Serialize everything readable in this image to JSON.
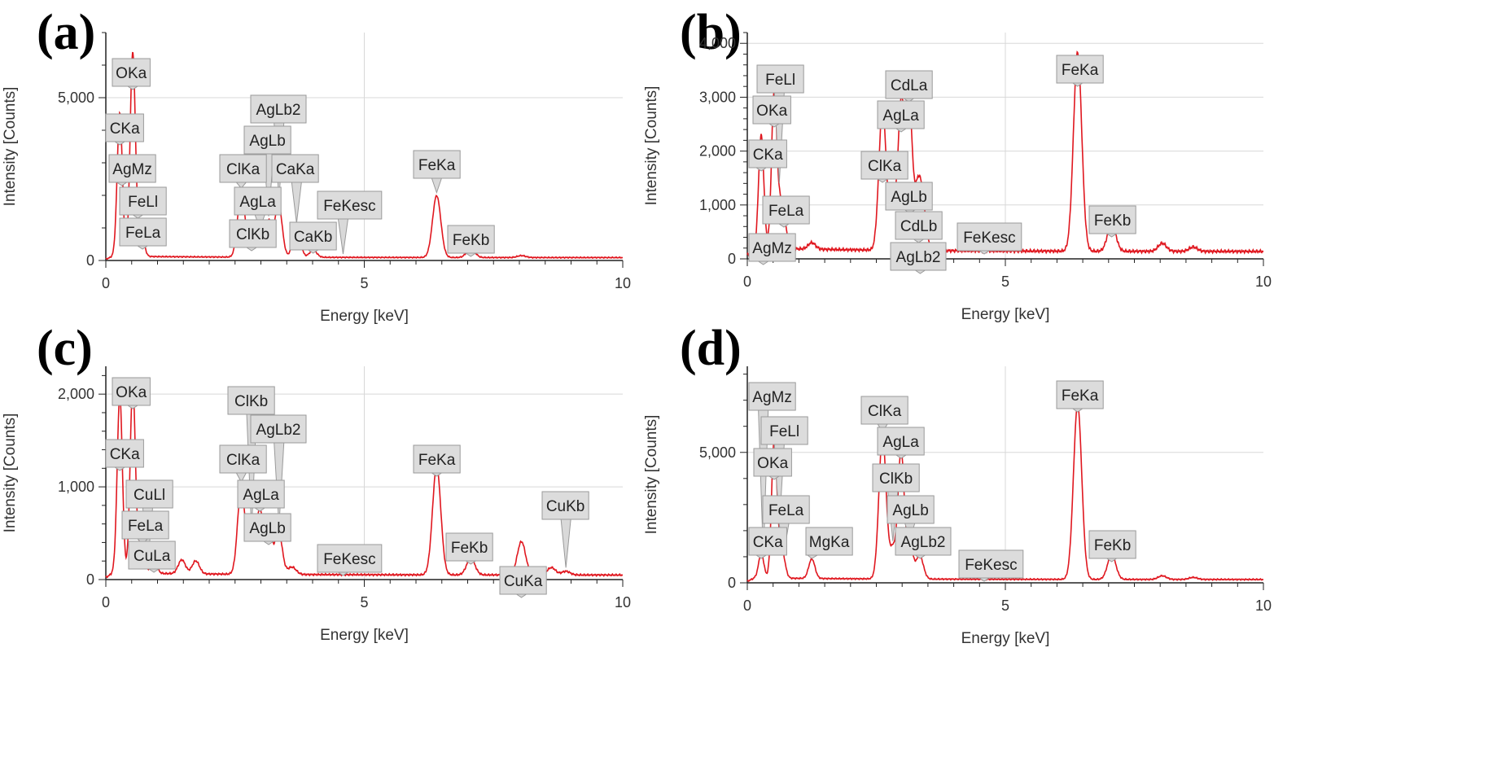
{
  "chart_data": [
    {
      "panel": "(a)",
      "type": "line",
      "xlabel": "Energy [keV]",
      "ylabel": "Intensity [Counts]",
      "xlim": [
        0,
        10
      ],
      "ylim": [
        0,
        7000
      ],
      "xticks": [
        "0",
        "5",
        "10"
      ],
      "yticks": [
        {
          "v": 0,
          "label": "0"
        },
        {
          "v": 5000,
          "label": "5,000"
        }
      ],
      "grid": true,
      "series_color": "#e0171f",
      "baseline": 90,
      "peaks": [
        [
          0.27,
          4400,
          0.05
        ],
        [
          0.52,
          6200,
          0.05
        ],
        [
          0.64,
          550,
          0.06
        ],
        [
          0.71,
          350,
          0.05
        ],
        [
          2.62,
          2000,
          0.07
        ],
        [
          2.82,
          700,
          0.06
        ],
        [
          2.98,
          750,
          0.06
        ],
        [
          3.15,
          1100,
          0.06
        ],
        [
          3.34,
          1650,
          0.07
        ],
        [
          3.69,
          950,
          0.07
        ],
        [
          4.01,
          220,
          0.07
        ],
        [
          6.4,
          1900,
          0.08
        ],
        [
          7.06,
          280,
          0.08
        ],
        [
          8.04,
          60,
          0.08
        ]
      ],
      "labels": [
        {
          "text": "OKa",
          "x": 0.52
        },
        {
          "text": "CKa",
          "x": 0.27
        },
        {
          "text": "AgMz",
          "x": 0.31
        },
        {
          "text": "FeLl",
          "x": 0.62
        },
        {
          "text": "FeLa",
          "x": 0.71
        },
        {
          "text": "AgLb2",
          "x": 3.35
        },
        {
          "text": "AgLb",
          "x": 3.15
        },
        {
          "text": "ClKa",
          "x": 2.62
        },
        {
          "text": "CaKa",
          "x": 3.69
        },
        {
          "text": "AgLa",
          "x": 2.98
        },
        {
          "text": "ClKb",
          "x": 2.82
        },
        {
          "text": "CaKb",
          "x": 4.01
        },
        {
          "text": "FeKesc",
          "x": 4.59
        },
        {
          "text": "FeKa",
          "x": 6.4
        },
        {
          "text": "FeKb",
          "x": 7.06
        }
      ]
    },
    {
      "panel": "(b)",
      "type": "line",
      "xlabel": "Energy [keV]",
      "ylabel": "Intensity [Counts]",
      "xlim": [
        0,
        10
      ],
      "ylim": [
        0,
        4200
      ],
      "xticks": [
        "0",
        "5",
        "10"
      ],
      "yticks": [
        {
          "v": 0,
          "label": "0"
        },
        {
          "v": 1000,
          "label": "1,000"
        },
        {
          "v": 2000,
          "label": "2,000"
        },
        {
          "v": 3000,
          "label": "3,000"
        },
        {
          "v": 4000,
          "label": "4,000"
        }
      ],
      "grid": true,
      "series_color": "#e0171f",
      "baseline": 140,
      "peaks": [
        [
          0.27,
          2100,
          0.05
        ],
        [
          0.52,
          2850,
          0.05
        ],
        [
          0.64,
          700,
          0.06
        ],
        [
          0.71,
          400,
          0.05
        ],
        [
          1.25,
          120,
          0.07
        ],
        [
          2.62,
          2650,
          0.07
        ],
        [
          2.82,
          900,
          0.06
        ],
        [
          2.98,
          2700,
          0.06
        ],
        [
          3.13,
          2900,
          0.06
        ],
        [
          3.3,
          1050,
          0.07
        ],
        [
          3.4,
          700,
          0.07
        ],
        [
          6.4,
          3700,
          0.08
        ],
        [
          7.06,
          520,
          0.08
        ],
        [
          8.04,
          150,
          0.08
        ],
        [
          8.64,
          80,
          0.08
        ]
      ],
      "labels": [
        {
          "text": "FeLl",
          "x": 0.62
        },
        {
          "text": "OKa",
          "x": 0.52
        },
        {
          "text": "CdLa",
          "x": 3.13
        },
        {
          "text": "AgLa",
          "x": 2.98
        },
        {
          "text": "CKa",
          "x": 0.27
        },
        {
          "text": "ClKa",
          "x": 2.62
        },
        {
          "text": "FeLa",
          "x": 0.71
        },
        {
          "text": "AgLb",
          "x": 3.15
        },
        {
          "text": "CdLb",
          "x": 3.32
        },
        {
          "text": "AgMz",
          "x": 0.31
        },
        {
          "text": "AgLb2",
          "x": 3.35
        },
        {
          "text": "FeKesc",
          "x": 4.59
        },
        {
          "text": "FeKa",
          "x": 6.4
        },
        {
          "text": "FeKb",
          "x": 7.06
        }
      ]
    },
    {
      "panel": "(c)",
      "type": "line",
      "xlabel": "Energy [keV]",
      "ylabel": "Intensity [Counts]",
      "xlim": [
        0,
        10
      ],
      "ylim": [
        0,
        2300
      ],
      "xticks": [
        "0",
        "5",
        "10"
      ],
      "yticks": [
        {
          "v": 0,
          "label": "0"
        },
        {
          "v": 1000,
          "label": "1,000"
        },
        {
          "v": 2000,
          "label": "2,000"
        }
      ],
      "grid": true,
      "series_color": "#e0171f",
      "baseline": 50,
      "peaks": [
        [
          0.27,
          1920,
          0.05
        ],
        [
          0.52,
          2000,
          0.05
        ],
        [
          0.64,
          200,
          0.06
        ],
        [
          0.71,
          180,
          0.05
        ],
        [
          0.93,
          120,
          0.06
        ],
        [
          1.47,
          150,
          0.07
        ],
        [
          1.74,
          140,
          0.07
        ],
        [
          2.62,
          950,
          0.07
        ],
        [
          2.82,
          400,
          0.06
        ],
        [
          2.98,
          700,
          0.06
        ],
        [
          3.15,
          500,
          0.06
        ],
        [
          3.34,
          480,
          0.07
        ],
        [
          3.6,
          80,
          0.08
        ],
        [
          6.4,
          1170,
          0.08
        ],
        [
          7.06,
          180,
          0.08
        ],
        [
          8.04,
          360,
          0.08
        ],
        [
          8.62,
          80,
          0.08
        ],
        [
          8.9,
          40,
          0.08
        ]
      ],
      "labels": [
        {
          "text": "OKa",
          "x": 0.52
        },
        {
          "text": "ClKb",
          "x": 2.82
        },
        {
          "text": "AgLb2",
          "x": 3.35
        },
        {
          "text": "CKa",
          "x": 0.27
        },
        {
          "text": "ClKa",
          "x": 2.62
        },
        {
          "text": "FeKa",
          "x": 6.4
        },
        {
          "text": "CuLl",
          "x": 0.81
        },
        {
          "text": "AgLa",
          "x": 2.98
        },
        {
          "text": "CuKb",
          "x": 8.9
        },
        {
          "text": "FeLa",
          "x": 0.71
        },
        {
          "text": "AgLb",
          "x": 3.15
        },
        {
          "text": "CuLa",
          "x": 0.93
        },
        {
          "text": "FeKesc",
          "x": 4.59
        },
        {
          "text": "FeKb",
          "x": 7.06
        },
        {
          "text": "CuKa",
          "x": 8.04
        }
      ]
    },
    {
      "panel": "(d)",
      "type": "line",
      "xlabel": "Energy [keV]",
      "ylabel": "Intensity [Counts]",
      "xlim": [
        0,
        10
      ],
      "ylim": [
        0,
        8300
      ],
      "xticks": [
        "0",
        "5",
        "10"
      ],
      "yticks": [
        {
          "v": 0,
          "label": "0"
        },
        {
          "v": 5000,
          "label": "5,000"
        }
      ],
      "grid": true,
      "series_color": "#e0171f",
      "baseline": 130,
      "peaks": [
        [
          0.27,
          950,
          0.05
        ],
        [
          0.52,
          5200,
          0.05
        ],
        [
          0.64,
          1100,
          0.06
        ],
        [
          0.71,
          300,
          0.05
        ],
        [
          1.25,
          750,
          0.06
        ],
        [
          2.62,
          5500,
          0.07
        ],
        [
          2.82,
          1100,
          0.06
        ],
        [
          2.98,
          4900,
          0.06
        ],
        [
          3.15,
          1300,
          0.06
        ],
        [
          3.34,
          900,
          0.07
        ],
        [
          6.4,
          6700,
          0.08
        ],
        [
          7.06,
          950,
          0.08
        ],
        [
          8.04,
          140,
          0.08
        ],
        [
          8.64,
          80,
          0.08
        ]
      ],
      "labels": [
        {
          "text": "AgMz",
          "x": 0.31
        },
        {
          "text": "FeLl",
          "x": 0.62
        },
        {
          "text": "OKa",
          "x": 0.52
        },
        {
          "text": "FeLa",
          "x": 0.71
        },
        {
          "text": "CKa",
          "x": 0.27
        },
        {
          "text": "MgKa",
          "x": 1.25
        },
        {
          "text": "ClKa",
          "x": 2.62
        },
        {
          "text": "AgLa",
          "x": 2.98
        },
        {
          "text": "ClKb",
          "x": 2.82
        },
        {
          "text": "AgLb",
          "x": 3.15
        },
        {
          "text": "AgLb2",
          "x": 3.35
        },
        {
          "text": "FeKesc",
          "x": 4.59
        },
        {
          "text": "FeKa",
          "x": 6.4
        },
        {
          "text": "FeKb",
          "x": 7.06
        }
      ]
    }
  ]
}
